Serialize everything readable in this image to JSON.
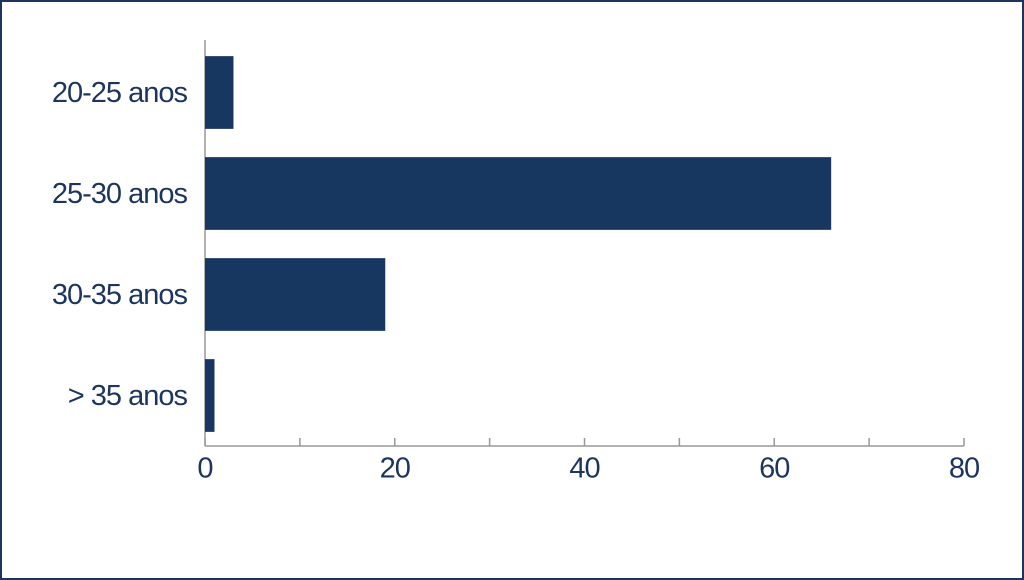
{
  "chart_data": {
    "type": "bar",
    "orientation": "horizontal",
    "categories": [
      "20-25 anos",
      "25-30 anos",
      "30-35 anos",
      "> 35 anos"
    ],
    "values": [
      3,
      66,
      19,
      1
    ],
    "color": "#173660",
    "xlim": [
      0,
      80
    ],
    "xticks": [
      0,
      20,
      40,
      60,
      80
    ],
    "xminorticks": [
      10,
      30,
      50,
      70
    ],
    "grid": false
  }
}
